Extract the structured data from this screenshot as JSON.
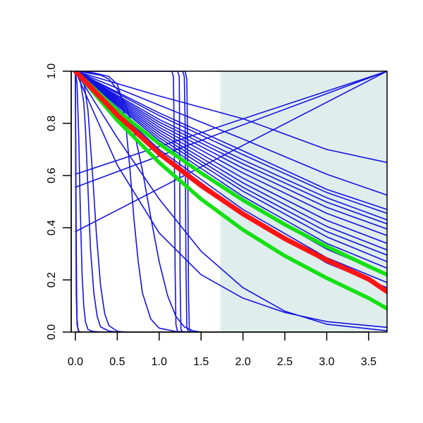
{
  "chart_data": {
    "type": "line",
    "title": "",
    "xlabel": "",
    "ylabel": "",
    "xlim": [
      -0.05,
      3.72
    ],
    "ylim": [
      0.0,
      1.0
    ],
    "x_ticks": [
      0.0,
      0.5,
      1.0,
      1.5,
      2.0,
      2.5,
      3.0,
      3.5
    ],
    "x_tick_labels": [
      "0.0",
      "0.5",
      "1.0",
      "1.5",
      "2.0",
      "2.5",
      "3.0",
      "3.5"
    ],
    "y_ticks": [
      0.0,
      0.2,
      0.4,
      0.6,
      0.8,
      1.0
    ],
    "y_tick_labels": [
      "0.0",
      "0.2",
      "0.4",
      "0.6",
      "0.8",
      "1.0"
    ],
    "grid": false,
    "legend": "none",
    "shaded_region": {
      "x_from": 1.73,
      "x_to": 3.72,
      "color": "#e0eded"
    },
    "colors": {
      "background_curves": "#1414e0",
      "upper_band": "#14e014",
      "center_curve": "#ff1414"
    },
    "series": [
      {
        "color": "#ff1414",
        "width": 7,
        "x": [
          0,
          0.5,
          1.0,
          1.5,
          2.0,
          2.5,
          3.0,
          3.5,
          3.72
        ],
        "y": [
          1.0,
          0.833,
          0.685,
          0.562,
          0.453,
          0.358,
          0.276,
          0.203,
          0.155
        ]
      },
      {
        "color": "#14e014",
        "width": 5.5,
        "x": [
          0,
          0.5,
          1.0,
          1.5,
          2.0,
          2.5,
          3.0,
          3.5,
          3.72
        ],
        "y": [
          1.0,
          0.85,
          0.722,
          0.61,
          0.506,
          0.412,
          0.328,
          0.252,
          0.22
        ]
      },
      {
        "color": "#14e014",
        "width": 5.5,
        "x": [
          0,
          0.5,
          1.0,
          1.5,
          2.0,
          2.5,
          3.0,
          3.5,
          3.72
        ],
        "y": [
          1.0,
          0.812,
          0.65,
          0.51,
          0.392,
          0.292,
          0.207,
          0.13,
          0.09
        ]
      },
      {
        "color": "#1414e0",
        "width": 1.6,
        "x": [
          0,
          1.0,
          2.0,
          3.0,
          3.72
        ],
        "y": [
          1.0,
          0.905,
          0.818,
          0.7,
          0.65
        ]
      },
      {
        "color": "#1414e0",
        "width": 1.6,
        "x": [
          0,
          1.0,
          2.0,
          3.0,
          3.72
        ],
        "y": [
          1.0,
          0.87,
          0.74,
          0.605,
          0.525
        ]
      },
      {
        "color": "#1414e0",
        "width": 1.6,
        "x": [
          0,
          1.0,
          2.0,
          3.0,
          3.72
        ],
        "y": [
          1.0,
          0.84,
          0.695,
          0.547,
          0.47
        ]
      },
      {
        "color": "#1414e0",
        "width": 1.6,
        "x": [
          0,
          1.0,
          2.0,
          3.0,
          3.72
        ],
        "y": [
          1.0,
          0.83,
          0.68,
          0.535,
          0.455
        ]
      },
      {
        "color": "#1414e0",
        "width": 1.6,
        "x": [
          0,
          1.0,
          2.0,
          3.0,
          3.72
        ],
        "y": [
          1.0,
          0.815,
          0.66,
          0.515,
          0.43
        ]
      },
      {
        "color": "#1414e0",
        "width": 1.6,
        "x": [
          0,
          1.0,
          2.0,
          3.0,
          3.72
        ],
        "y": [
          1.0,
          0.805,
          0.645,
          0.498,
          0.415
        ]
      },
      {
        "color": "#1414e0",
        "width": 1.6,
        "x": [
          0,
          1.0,
          2.0,
          3.0,
          3.72
        ],
        "y": [
          1.0,
          0.795,
          0.628,
          0.478,
          0.395
        ]
      },
      {
        "color": "#1414e0",
        "width": 1.6,
        "x": [
          0,
          1.0,
          2.0,
          3.0,
          3.72
        ],
        "y": [
          1.0,
          0.785,
          0.61,
          0.455,
          0.37
        ]
      },
      {
        "color": "#1414e0",
        "width": 1.6,
        "x": [
          0,
          1.0,
          2.0,
          3.0,
          3.72
        ],
        "y": [
          1.0,
          0.775,
          0.59,
          0.428,
          0.34
        ]
      },
      {
        "color": "#1414e0",
        "width": 1.6,
        "x": [
          0,
          1.0,
          2.0,
          3.0,
          3.72
        ],
        "y": [
          1.0,
          0.765,
          0.572,
          0.405,
          0.315
        ]
      },
      {
        "color": "#1414e0",
        "width": 1.6,
        "x": [
          0,
          1.0,
          2.0,
          3.0,
          3.72
        ],
        "y": [
          1.0,
          0.755,
          0.555,
          0.385,
          0.295
        ]
      },
      {
        "color": "#1414e0",
        "width": 1.6,
        "x": [
          0,
          1.0,
          2.0,
          3.0,
          3.72
        ],
        "y": [
          1.0,
          0.745,
          0.54,
          0.365,
          0.27
        ]
      },
      {
        "color": "#1414e0",
        "width": 1.6,
        "x": [
          0,
          1.0,
          2.0,
          3.0,
          3.72
        ],
        "y": [
          1.0,
          0.735,
          0.52,
          0.34,
          0.245
        ]
      },
      {
        "color": "#1414e0",
        "width": 1.6,
        "x": [
          0,
          1.0,
          2.0,
          3.0,
          3.72
        ],
        "y": [
          1.0,
          0.72,
          0.5,
          0.318,
          0.22
        ]
      },
      {
        "color": "#1414e0",
        "width": 1.6,
        "x": [
          0,
          1.0,
          2.0,
          3.0,
          3.72
        ],
        "y": [
          1.0,
          0.7,
          0.47,
          0.285,
          0.19
        ]
      },
      {
        "color": "#1414e0",
        "width": 1.6,
        "x": [
          0,
          1.0,
          2.0,
          3.0,
          3.72
        ],
        "y": [
          1.0,
          0.69,
          0.455,
          0.265,
          0.17
        ]
      },
      {
        "color": "#1414e0",
        "width": 1.6,
        "x": [
          0,
          0.5,
          1.0,
          1.5,
          2.0,
          2.5,
          3.0,
          3.72
        ],
        "y": [
          1.0,
          0.745,
          0.51,
          0.31,
          0.17,
          0.08,
          0.03,
          0.005
        ]
      },
      {
        "color": "#1414e0",
        "width": 1.6,
        "x": [
          0,
          0.5,
          1.0,
          1.5,
          2.0,
          2.5,
          3.0,
          3.72
        ],
        "y": [
          1.0,
          0.64,
          0.38,
          0.22,
          0.13,
          0.075,
          0.04,
          0.018
        ]
      },
      {
        "color": "#1414e0",
        "width": 1.6,
        "x": [
          0,
          3.72
        ],
        "y": [
          0.605,
          1.0
        ]
      },
      {
        "color": "#1414e0",
        "width": 1.6,
        "x": [
          0,
          3.72
        ],
        "y": [
          0.555,
          1.0
        ]
      },
      {
        "color": "#1414e0",
        "width": 1.6,
        "x": [
          0,
          3.72
        ],
        "y": [
          0.385,
          1.0
        ]
      },
      {
        "color": "#1414e0",
        "width": 1.6,
        "x": [
          0,
          0.1,
          0.2,
          0.3,
          0.4,
          0.5,
          0.6,
          0.7,
          0.8,
          0.9,
          1.0,
          1.1,
          1.2,
          1.3,
          1.4,
          1.5
        ],
        "y": [
          1.0,
          0.996,
          0.99,
          0.985,
          0.97,
          0.93,
          0.87,
          0.77,
          0.62,
          0.44,
          0.27,
          0.14,
          0.06,
          0.02,
          0.005,
          0.0
        ]
      },
      {
        "color": "#1414e0",
        "width": 1.6,
        "x": [
          0,
          0.2,
          0.4,
          0.5,
          0.55,
          0.6,
          0.65,
          0.7,
          0.75,
          0.8,
          0.9,
          1.0,
          1.2,
          1.5
        ],
        "y": [
          1.0,
          0.995,
          0.98,
          0.95,
          0.9,
          0.8,
          0.63,
          0.43,
          0.27,
          0.15,
          0.05,
          0.015,
          0.002,
          0.0
        ]
      },
      {
        "color": "#1414e0",
        "width": 1.6,
        "x": [
          0,
          0.02,
          0.04,
          0.06,
          0.08,
          0.1,
          0.12,
          0.15,
          0.2,
          0.3
        ],
        "y": [
          1.0,
          0.95,
          0.75,
          0.45,
          0.22,
          0.1,
          0.04,
          0.01,
          0.003,
          0.0
        ]
      },
      {
        "color": "#1414e0",
        "width": 1.6,
        "x": [
          0,
          0.05,
          0.1,
          0.12,
          0.15,
          0.18,
          0.22,
          0.26,
          0.3,
          0.4,
          0.5
        ],
        "y": [
          1.0,
          0.98,
          0.88,
          0.78,
          0.55,
          0.32,
          0.15,
          0.06,
          0.02,
          0.004,
          0.0
        ]
      },
      {
        "color": "#1414e0",
        "width": 1.6,
        "x": [
          0,
          0.1,
          0.15,
          0.2,
          0.25,
          0.3,
          0.35,
          0.4,
          0.5,
          0.6
        ],
        "y": [
          1.0,
          0.96,
          0.85,
          0.63,
          0.38,
          0.18,
          0.07,
          0.025,
          0.003,
          0.0
        ]
      },
      {
        "color": "#1414e0",
        "width": 1.6,
        "x": [
          0,
          0.005,
          0.01,
          0.015,
          0.02,
          0.03,
          0.05,
          0.08
        ],
        "y": [
          1.0,
          0.7,
          0.35,
          0.15,
          0.05,
          0.01,
          0.0,
          0.0
        ]
      },
      {
        "color": "#1414e0",
        "width": 1.6,
        "x": [
          0,
          0.005,
          0.01,
          0.02,
          0.04,
          0.06
        ],
        "y": [
          1.0,
          0.5,
          0.15,
          0.03,
          0.0,
          0.0
        ]
      },
      {
        "color": "#1414e0",
        "width": 1.6,
        "x": [
          0,
          1.15,
          1.17,
          1.18,
          1.19,
          1.2,
          1.22,
          1.3
        ],
        "y": [
          1.0,
          1.0,
          0.98,
          0.75,
          0.25,
          0.03,
          0.0,
          0.0
        ]
      },
      {
        "color": "#1414e0",
        "width": 1.6,
        "x": [
          0,
          1.22,
          1.24,
          1.245,
          1.25,
          1.26,
          1.28,
          1.4
        ],
        "y": [
          1.0,
          1.0,
          0.98,
          0.7,
          0.2,
          0.01,
          0.0,
          0.0
        ]
      },
      {
        "color": "#1414e0",
        "width": 1.6,
        "x": [
          0,
          1.28,
          1.3,
          1.31,
          1.32,
          1.33,
          1.35,
          1.5
        ],
        "y": [
          1.0,
          1.0,
          0.98,
          0.8,
          0.25,
          0.02,
          0.0,
          0.0
        ]
      },
      {
        "color": "#1414e0",
        "width": 1.6,
        "x": [
          0,
          1.31,
          1.33,
          1.34,
          1.35,
          1.36,
          1.38,
          1.5
        ],
        "y": [
          1.0,
          1.0,
          0.97,
          0.7,
          0.15,
          0.01,
          0.0,
          0.0
        ]
      }
    ]
  }
}
